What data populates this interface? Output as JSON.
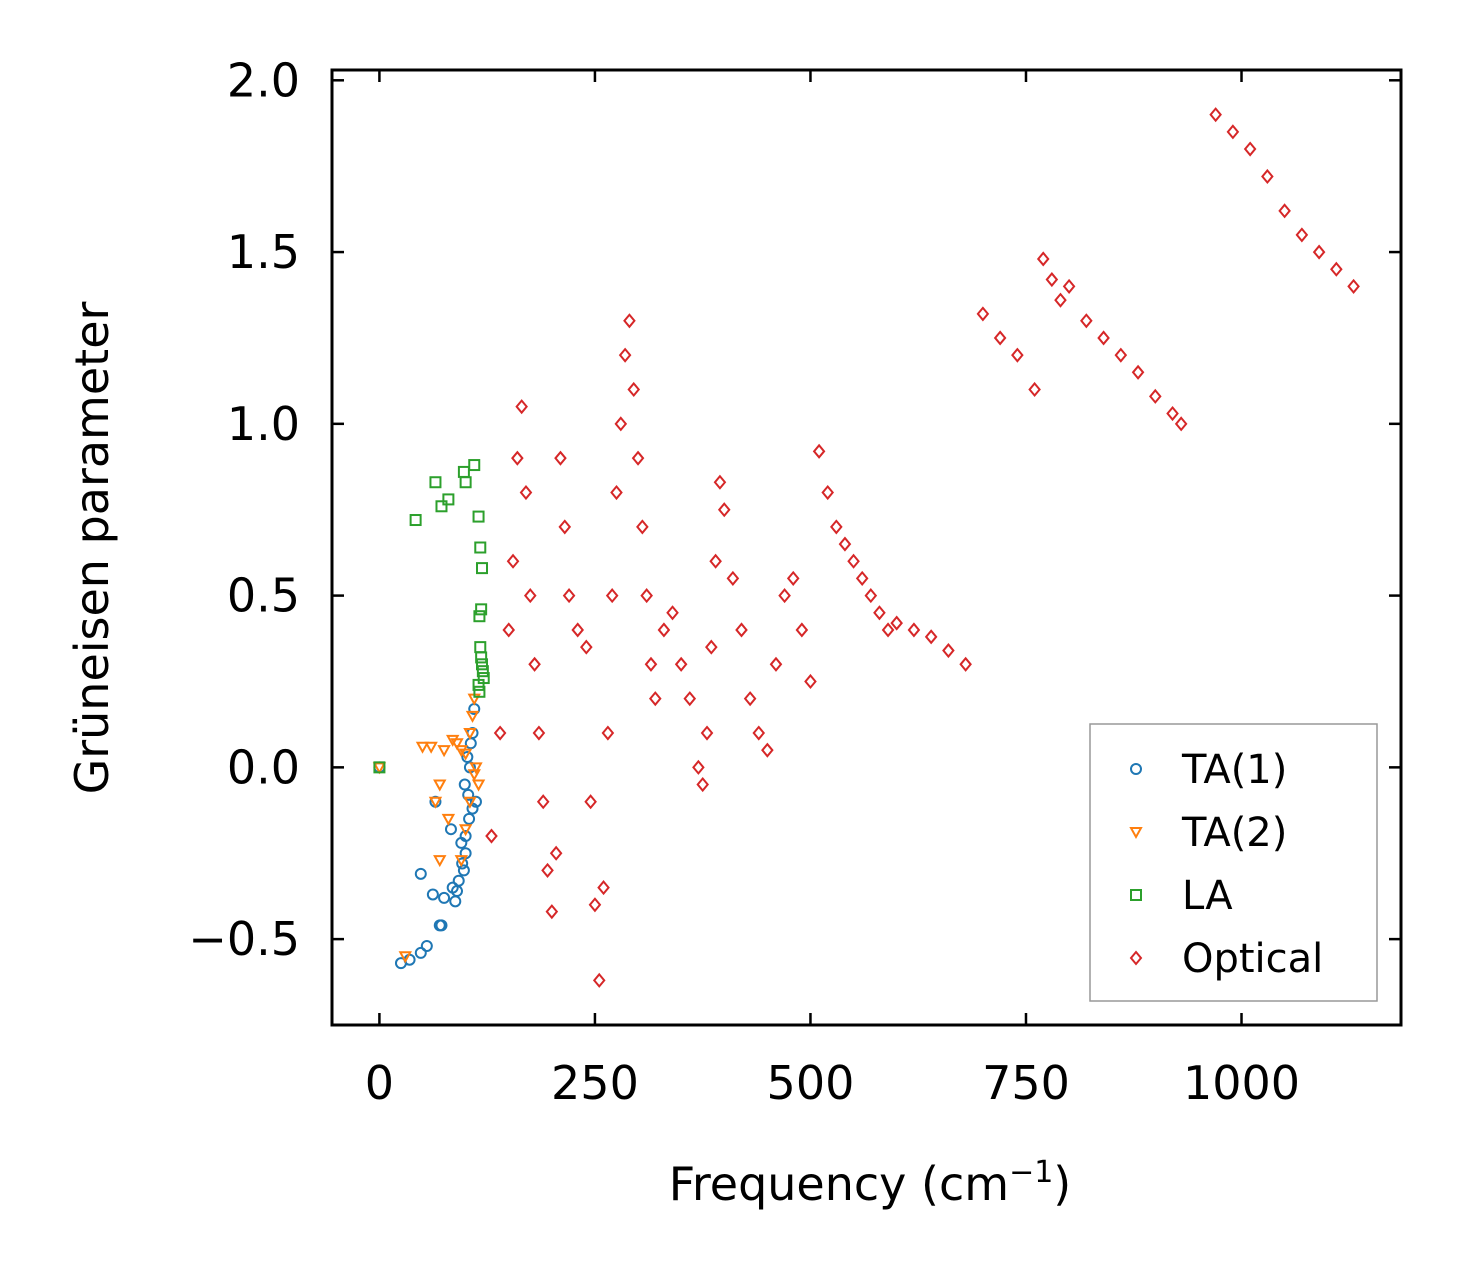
{
  "chart_data": {
    "type": "scatter",
    "title": "",
    "xlabel": "Frequency (cm",
    "xlabel_sup": "−1",
    "xlabel_close": ")",
    "ylabel": "Grüneisen parameter",
    "xlim": [
      -55,
      1185
    ],
    "ylim": [
      -0.75,
      2.03
    ],
    "x_ticks": [
      0,
      250,
      500,
      750,
      1000
    ],
    "x_tick_labels": [
      "0",
      "250",
      "500",
      "750",
      "1000"
    ],
    "y_ticks": [
      -0.5,
      0.0,
      0.5,
      1.0,
      1.5,
      2.0
    ],
    "y_tick_labels": [
      "−0.5",
      "0.0",
      "0.5",
      "1.0",
      "1.5",
      "2.0"
    ],
    "grid": false,
    "legend_position": "bottom-right",
    "series": [
      {
        "name": "TA(1)",
        "color": "#1f77b4",
        "marker": "circle",
        "x": [
          0,
          25,
          35,
          48,
          55,
          62,
          48,
          65,
          70,
          75,
          72,
          85,
          83,
          90,
          95,
          100,
          98,
          103,
          105,
          108,
          110,
          88,
          92,
          96,
          100,
          104,
          108,
          112,
          102,
          106,
          99
        ],
        "y": [
          0.0,
          -0.57,
          -0.56,
          -0.54,
          -0.52,
          -0.37,
          -0.31,
          -0.1,
          -0.46,
          -0.38,
          -0.46,
          -0.35,
          -0.18,
          -0.36,
          -0.22,
          -0.25,
          -0.3,
          -0.08,
          0.0,
          0.1,
          0.17,
          -0.39,
          -0.33,
          -0.28,
          -0.2,
          -0.15,
          -0.12,
          -0.1,
          0.03,
          0.07,
          -0.05
        ]
      },
      {
        "name": "TA(2)",
        "color": "#ff7f0e",
        "marker": "triangle-down",
        "x": [
          0,
          30,
          50,
          60,
          65,
          70,
          75,
          85,
          90,
          95,
          100,
          105,
          108,
          110,
          112,
          115,
          70,
          80,
          95,
          100,
          105,
          110
        ],
        "y": [
          0.0,
          -0.55,
          0.06,
          0.06,
          -0.1,
          -0.27,
          0.05,
          0.08,
          0.07,
          0.05,
          0.04,
          0.1,
          0.15,
          0.2,
          0.0,
          -0.05,
          -0.05,
          -0.15,
          -0.27,
          -0.18,
          -0.1,
          -0.02
        ]
      },
      {
        "name": "LA",
        "color": "#2ca02c",
        "marker": "square",
        "x": [
          0,
          42,
          65,
          72,
          80,
          98,
          100,
          110,
          115,
          117,
          119,
          118,
          116,
          117,
          118,
          119,
          120,
          121,
          115,
          116
        ],
        "y": [
          0.0,
          0.72,
          0.83,
          0.76,
          0.78,
          0.86,
          0.83,
          0.88,
          0.73,
          0.64,
          0.58,
          0.46,
          0.44,
          0.35,
          0.32,
          0.3,
          0.28,
          0.26,
          0.24,
          0.22
        ]
      },
      {
        "name": "Optical",
        "color": "#d62728",
        "marker": "diamond",
        "x": [
          130,
          140,
          150,
          155,
          160,
          165,
          170,
          175,
          180,
          185,
          190,
          195,
          200,
          205,
          210,
          215,
          220,
          230,
          240,
          245,
          250,
          255,
          260,
          265,
          270,
          275,
          280,
          285,
          290,
          295,
          300,
          305,
          310,
          315,
          320,
          330,
          340,
          350,
          360,
          370,
          375,
          380,
          385,
          390,
          395,
          400,
          410,
          420,
          430,
          440,
          450,
          460,
          470,
          480,
          490,
          500,
          510,
          520,
          530,
          540,
          550,
          560,
          570,
          580,
          590,
          600,
          620,
          640,
          660,
          680,
          700,
          720,
          740,
          760,
          770,
          780,
          790,
          800,
          820,
          840,
          860,
          880,
          900,
          920,
          930,
          970,
          990,
          1010,
          1030,
          1050,
          1070,
          1090,
          1110,
          1130
        ],
        "y": [
          -0.2,
          0.1,
          0.4,
          0.6,
          0.9,
          1.05,
          0.8,
          0.5,
          0.3,
          0.1,
          -0.1,
          -0.3,
          -0.42,
          -0.25,
          0.9,
          0.7,
          0.5,
          0.4,
          0.35,
          -0.1,
          -0.4,
          -0.62,
          -0.35,
          0.1,
          0.5,
          0.8,
          1.0,
          1.2,
          1.3,
          1.1,
          0.9,
          0.7,
          0.5,
          0.3,
          0.2,
          0.4,
          0.45,
          0.3,
          0.2,
          0.0,
          -0.05,
          0.1,
          0.35,
          0.6,
          0.83,
          0.75,
          0.55,
          0.4,
          0.2,
          0.1,
          0.05,
          0.3,
          0.5,
          0.55,
          0.4,
          0.25,
          0.92,
          0.8,
          0.7,
          0.65,
          0.6,
          0.55,
          0.5,
          0.45,
          0.4,
          0.42,
          0.4,
          0.38,
          0.34,
          0.3,
          1.32,
          1.25,
          1.2,
          1.1,
          1.48,
          1.42,
          1.36,
          1.4,
          1.3,
          1.25,
          1.2,
          1.15,
          1.08,
          1.03,
          1.0,
          1.9,
          1.85,
          1.8,
          1.72,
          1.62,
          1.55,
          1.5,
          1.45,
          1.4
        ]
      }
    ]
  }
}
